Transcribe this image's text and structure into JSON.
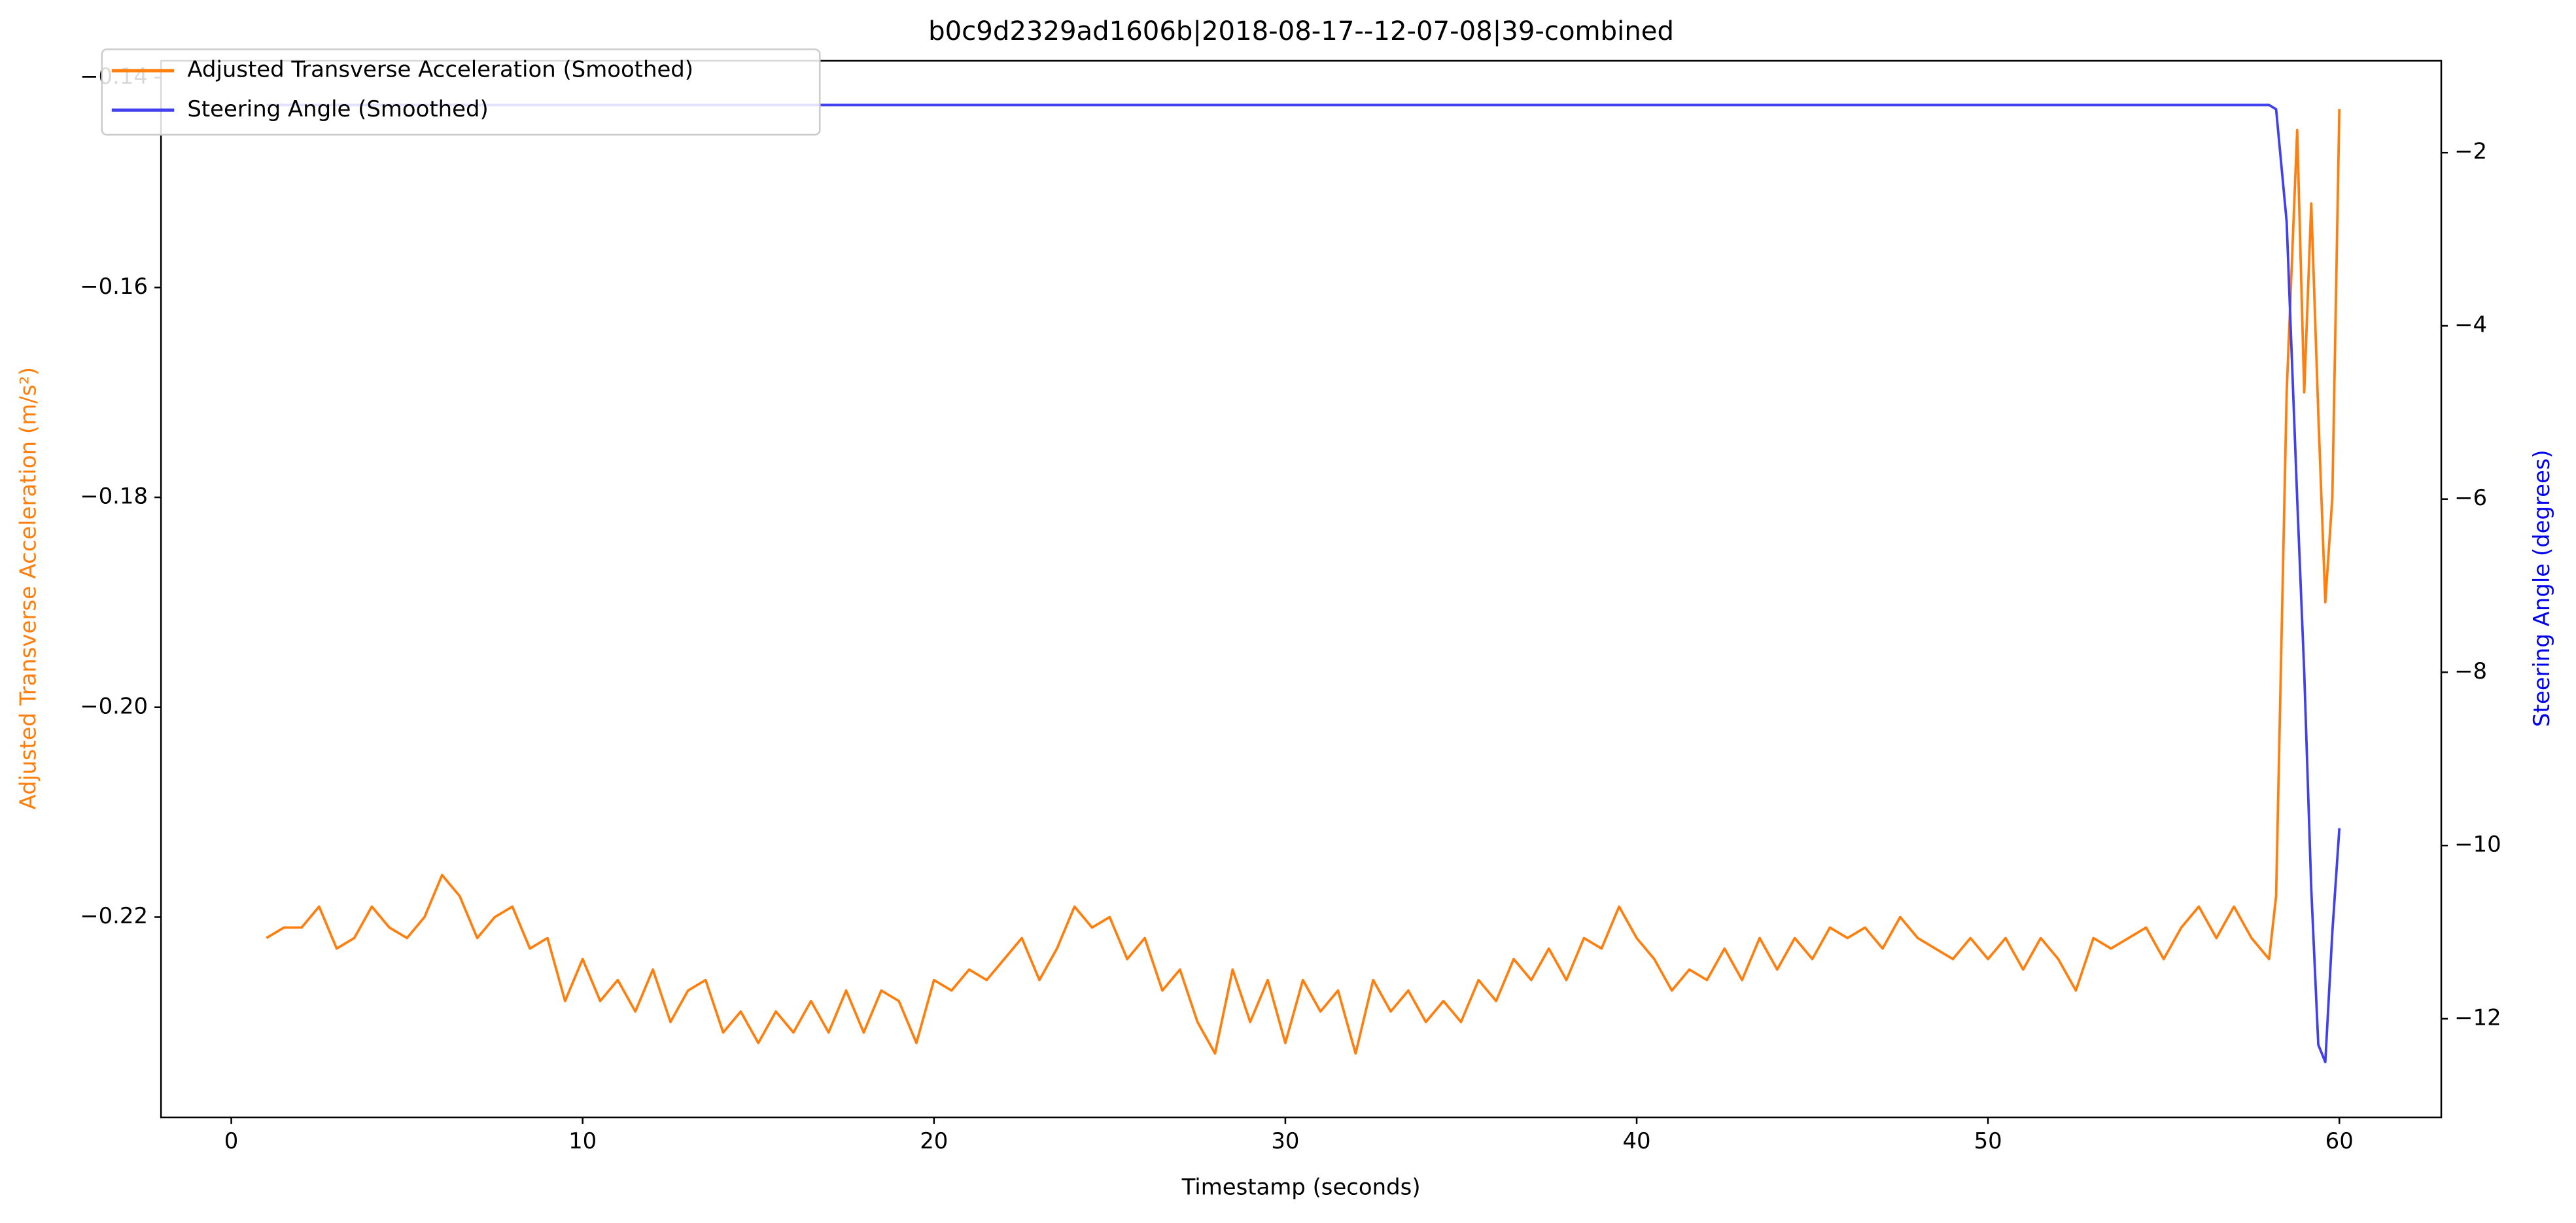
{
  "chart_data": {
    "type": "line",
    "title": "b0c9d2329ad1606b|2018-08-17--12-07-08|39-combined",
    "xlabel": "Timestamp (seconds)",
    "ylabel": "Adjusted Transverse Acceleration (m/s²)",
    "y2label": "Steering Angle (degrees)",
    "legend": "upper left",
    "xlim": [
      -2,
      62.9
    ],
    "xticks": [
      0,
      10,
      20,
      30,
      40,
      50,
      60
    ],
    "ylim": [
      -0.2391,
      -0.1384
    ],
    "yticks": [
      {
        "value": -0.14,
        "label": "−0.14"
      },
      {
        "value": -0.16,
        "label": "−0.16"
      },
      {
        "value": -0.18,
        "label": "−0.18"
      },
      {
        "value": -0.2,
        "label": "−0.20"
      },
      {
        "value": -0.22,
        "label": "−0.22"
      }
    ],
    "y2lim": [
      -13.14,
      -0.94
    ],
    "y2ticks": [
      {
        "value": -2,
        "label": "−2"
      },
      {
        "value": -4,
        "label": "−4"
      },
      {
        "value": -6,
        "label": "−6"
      },
      {
        "value": -8,
        "label": "−8"
      },
      {
        "value": -10,
        "label": "−10"
      },
      {
        "value": -12,
        "label": "−12"
      }
    ],
    "x": [
      1,
      1.5,
      2,
      2.5,
      3,
      3.5,
      4,
      4.5,
      5,
      5.5,
      6,
      6.5,
      7,
      7.5,
      8,
      8.5,
      9,
      9.5,
      10,
      10.5,
      11,
      11.5,
      12,
      12.5,
      13,
      13.5,
      14,
      14.5,
      15,
      15.5,
      16,
      16.5,
      17,
      17.5,
      18,
      18.5,
      19,
      19.5,
      20,
      20.5,
      21,
      21.5,
      22,
      22.5,
      23,
      23.5,
      24,
      24.5,
      25,
      25.5,
      26,
      26.5,
      27,
      27.5,
      28,
      28.5,
      29,
      29.5,
      30,
      30.5,
      31,
      31.5,
      32,
      32.5,
      33,
      33.5,
      34,
      34.5,
      35,
      35.5,
      36,
      36.5,
      37,
      37.5,
      38,
      38.5,
      39,
      39.5,
      40,
      40.5,
      41,
      41.5,
      42,
      42.5,
      43,
      43.5,
      44,
      44.5,
      45,
      45.5,
      46,
      46.5,
      47,
      47.5,
      48,
      48.5,
      49,
      49.5,
      50,
      50.5,
      51,
      51.5,
      52,
      52.5,
      53,
      53.5,
      54,
      54.5,
      55,
      55.5,
      56,
      56.5,
      57,
      57.5,
      58,
      58.2,
      58.5,
      58.8,
      59,
      59.2,
      59.4,
      59.6,
      59.8,
      60
    ],
    "series": [
      {
        "name": "Adjusted Transverse Acceleration (Smoothed)",
        "color": "#ff7f0e",
        "axis": "y",
        "values": [
          -0.222,
          -0.221,
          -0.221,
          -0.219,
          -0.223,
          -0.222,
          -0.219,
          -0.221,
          -0.222,
          -0.22,
          -0.216,
          -0.218,
          -0.222,
          -0.22,
          -0.219,
          -0.223,
          -0.222,
          -0.228,
          -0.224,
          -0.228,
          -0.226,
          -0.229,
          -0.225,
          -0.23,
          -0.227,
          -0.226,
          -0.231,
          -0.229,
          -0.232,
          -0.229,
          -0.231,
          -0.228,
          -0.231,
          -0.227,
          -0.231,
          -0.227,
          -0.228,
          -0.232,
          -0.226,
          -0.227,
          -0.225,
          -0.226,
          -0.224,
          -0.222,
          -0.226,
          -0.223,
          -0.219,
          -0.221,
          -0.22,
          -0.224,
          -0.222,
          -0.227,
          -0.225,
          -0.23,
          -0.233,
          -0.225,
          -0.23,
          -0.226,
          -0.232,
          -0.226,
          -0.229,
          -0.227,
          -0.233,
          -0.226,
          -0.229,
          -0.227,
          -0.23,
          -0.228,
          -0.23,
          -0.226,
          -0.228,
          -0.224,
          -0.226,
          -0.223,
          -0.226,
          -0.222,
          -0.223,
          -0.219,
          -0.222,
          -0.224,
          -0.227,
          -0.225,
          -0.226,
          -0.223,
          -0.226,
          -0.222,
          -0.225,
          -0.222,
          -0.224,
          -0.221,
          -0.222,
          -0.221,
          -0.223,
          -0.22,
          -0.222,
          -0.223,
          -0.224,
          -0.222,
          -0.224,
          -0.222,
          -0.225,
          -0.222,
          -0.224,
          -0.227,
          -0.222,
          -0.223,
          -0.222,
          -0.221,
          -0.224,
          -0.221,
          -0.219,
          -0.222,
          -0.219,
          -0.222,
          -0.224,
          -0.218,
          -0.17,
          -0.145,
          -0.17,
          -0.152,
          -0.172,
          -0.19,
          -0.18,
          -0.143
        ]
      },
      {
        "name": "Steering Angle (Smoothed)",
        "color": "#4040ee",
        "axis": "y2",
        "values": [
          -1.45,
          -1.45,
          -1.45,
          -1.45,
          -1.45,
          -1.45,
          -1.45,
          -1.45,
          -1.45,
          -1.45,
          -1.45,
          -1.45,
          -1.45,
          -1.45,
          -1.45,
          -1.45,
          -1.45,
          -1.45,
          -1.45,
          -1.45,
          -1.45,
          -1.45,
          -1.45,
          -1.45,
          -1.45,
          -1.45,
          -1.45,
          -1.45,
          -1.45,
          -1.45,
          -1.45,
          -1.45,
          -1.45,
          -1.45,
          -1.45,
          -1.45,
          -1.45,
          -1.45,
          -1.45,
          -1.45,
          -1.45,
          -1.45,
          -1.45,
          -1.45,
          -1.45,
          -1.45,
          -1.45,
          -1.45,
          -1.45,
          -1.45,
          -1.45,
          -1.45,
          -1.45,
          -1.45,
          -1.45,
          -1.45,
          -1.45,
          -1.45,
          -1.45,
          -1.45,
          -1.45,
          -1.45,
          -1.45,
          -1.45,
          -1.45,
          -1.45,
          -1.45,
          -1.45,
          -1.45,
          -1.45,
          -1.45,
          -1.45,
          -1.45,
          -1.45,
          -1.45,
          -1.45,
          -1.45,
          -1.45,
          -1.45,
          -1.45,
          -1.45,
          -1.45,
          -1.45,
          -1.45,
          -1.45,
          -1.45,
          -1.45,
          -1.45,
          -1.45,
          -1.45,
          -1.45,
          -1.45,
          -1.45,
          -1.45,
          -1.45,
          -1.45,
          -1.45,
          -1.45,
          -1.45,
          -1.45,
          -1.45,
          -1.45,
          -1.45,
          -1.45,
          -1.45,
          -1.45,
          -1.45,
          -1.45,
          -1.45,
          -1.45,
          -1.45,
          -1.45,
          -1.45,
          -1.45,
          -1.45,
          -1.5,
          -2.8,
          -6,
          -8,
          -10.5,
          -12.3,
          -12.5,
          -11,
          -9.8
        ]
      }
    ]
  }
}
